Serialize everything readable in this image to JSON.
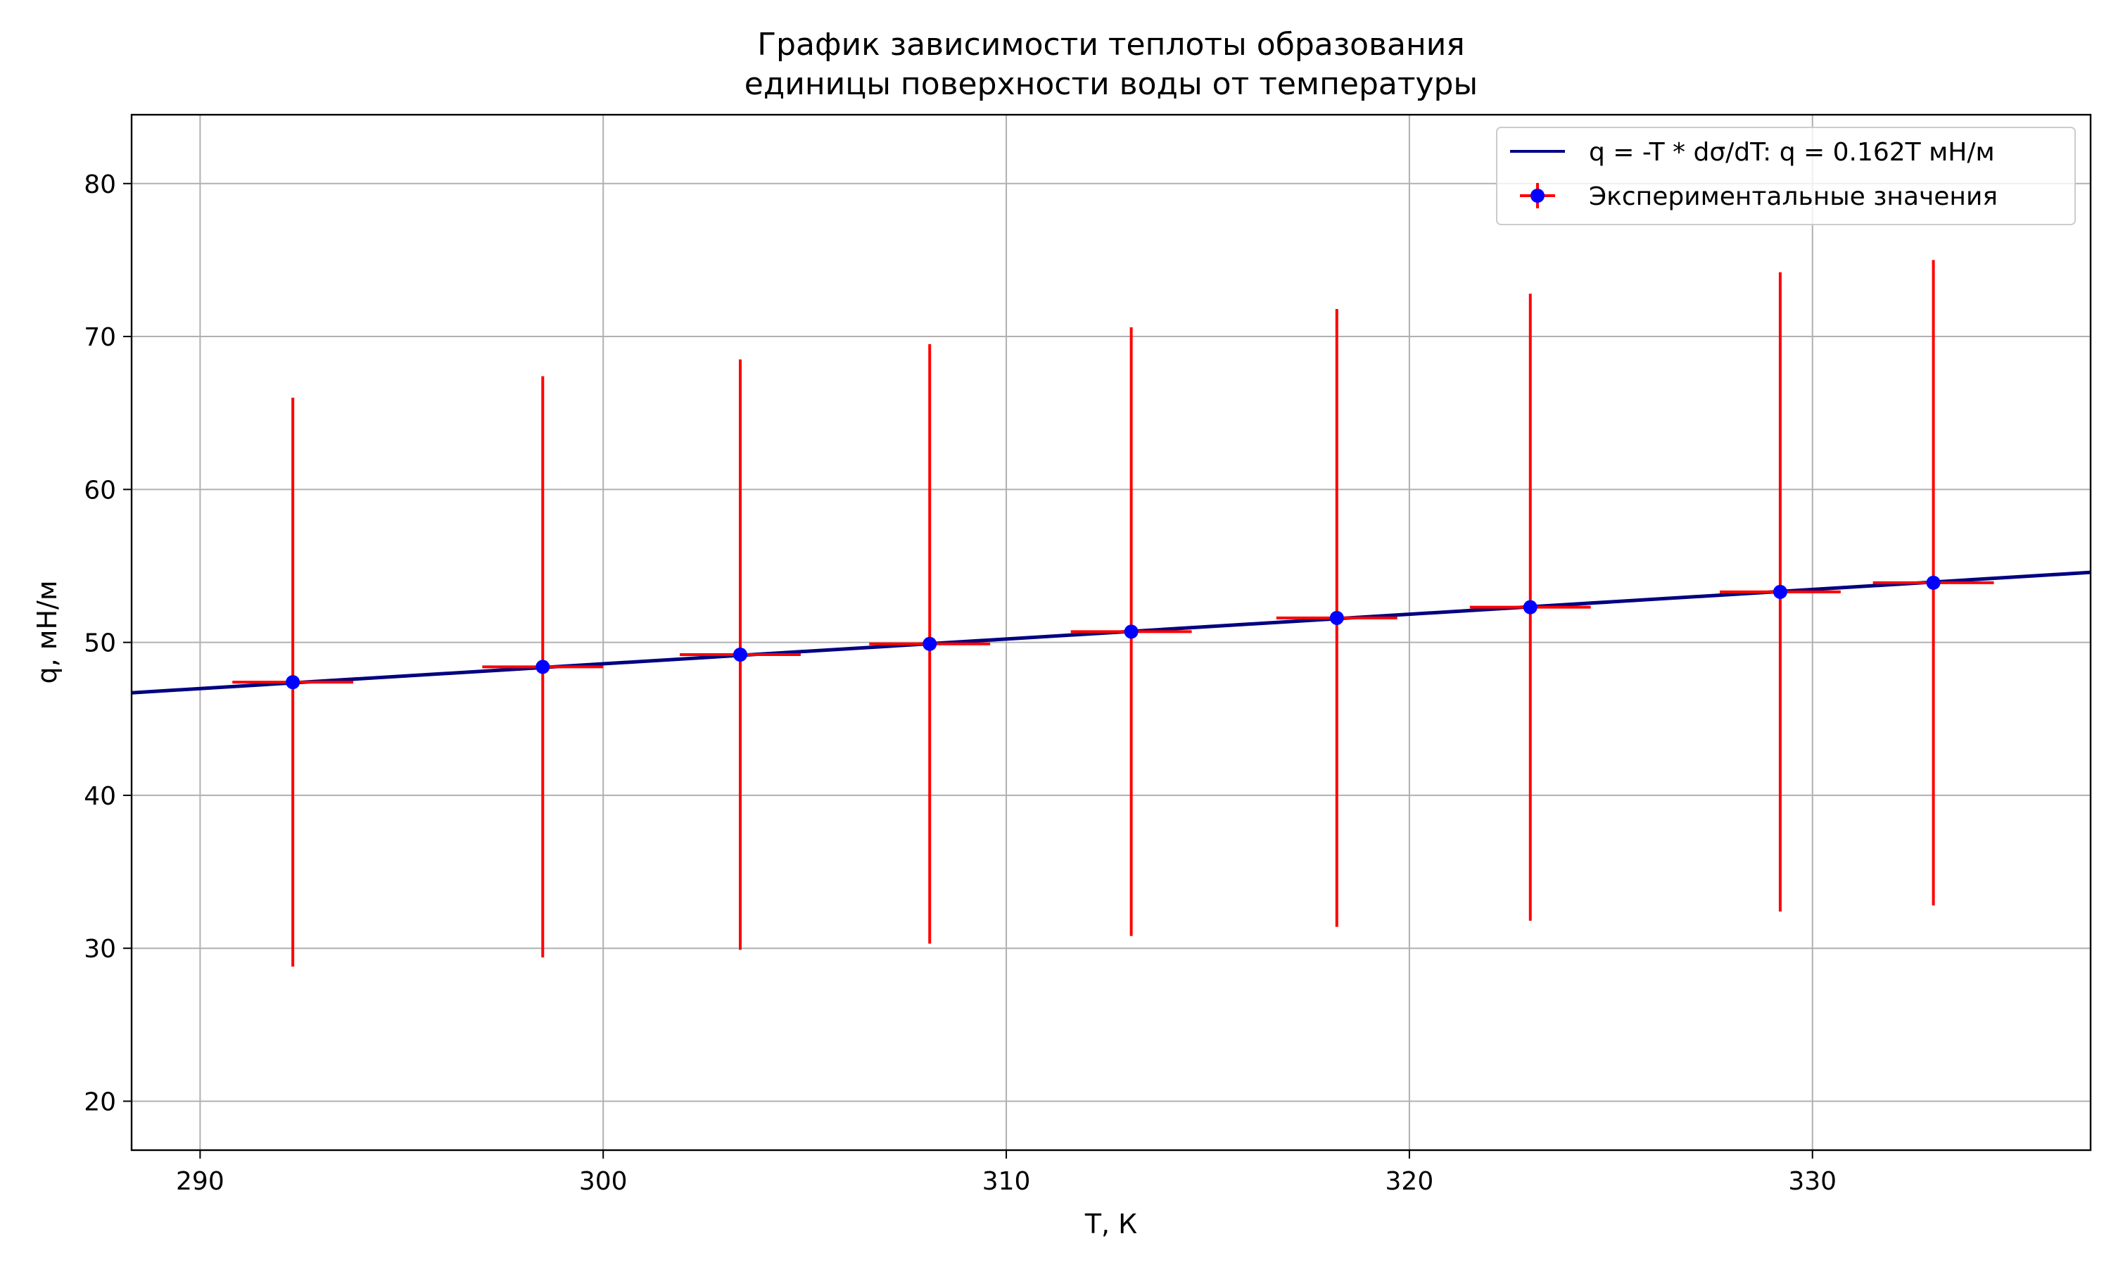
{
  "chart_data": {
    "type": "scatter",
    "title_line1": "График зависимости теплоты образования",
    "title_line2": "единицы поверхности воды от температуры",
    "xlabel": "T, К",
    "ylabel": "q, мН/м",
    "xlim": [
      288.3,
      336.9
    ],
    "ylim": [
      16.8,
      84.5
    ],
    "xticks": [
      290,
      300,
      310,
      320,
      330
    ],
    "yticks": [
      20,
      30,
      40,
      50,
      60,
      70,
      80
    ],
    "xtick_labels": [
      "290",
      "300",
      "310",
      "320",
      "330"
    ],
    "ytick_labels": [
      "20",
      "30",
      "40",
      "50",
      "60",
      "70",
      "80"
    ],
    "grid": true,
    "legend_position": "top-right",
    "fit_line": {
      "name": "q = -T * dσ/dT: q = 0.162T мН/м",
      "slope": 0.162,
      "intercept": 0,
      "color": "#000080"
    },
    "series": [
      {
        "name": "Экспериментальные значения",
        "marker_color": "#0000ff",
        "error_color": "#ff0000",
        "points": [
          {
            "x": 292.3,
            "y": 47.4,
            "xerr": 1.5,
            "yerr_low": 18.6,
            "yerr_high": 18.6
          },
          {
            "x": 298.5,
            "y": 48.4,
            "xerr": 1.5,
            "yerr_low": 19.0,
            "yerr_high": 19.0
          },
          {
            "x": 303.4,
            "y": 49.2,
            "xerr": 1.5,
            "yerr_low": 19.3,
            "yerr_high": 19.3
          },
          {
            "x": 308.1,
            "y": 49.9,
            "xerr": 1.5,
            "yerr_low": 19.6,
            "yerr_high": 19.6
          },
          {
            "x": 313.1,
            "y": 50.7,
            "xerr": 1.5,
            "yerr_low": 19.9,
            "yerr_high": 19.9
          },
          {
            "x": 318.2,
            "y": 51.6,
            "xerr": 1.5,
            "yerr_low": 20.2,
            "yerr_high": 20.2
          },
          {
            "x": 323.0,
            "y": 52.3,
            "xerr": 1.5,
            "yerr_low": 20.5,
            "yerr_high": 20.5
          },
          {
            "x": 329.2,
            "y": 53.3,
            "xerr": 1.5,
            "yerr_low": 20.9,
            "yerr_high": 20.9
          },
          {
            "x": 333.0,
            "y": 53.9,
            "xerr": 1.5,
            "yerr_low": 21.1,
            "yerr_high": 21.1
          }
        ]
      }
    ]
  }
}
